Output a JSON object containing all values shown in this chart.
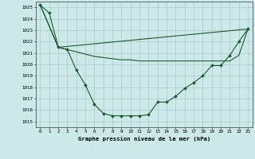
{
  "bg_color": "#cce8e8",
  "grid_color": "#aacccc",
  "line_color": "#1a5c2a",
  "marker_color": "#1a5c2a",
  "xlabel": "Graphe pression niveau de la mer (hPa)",
  "xlim": [
    -0.5,
    23.5
  ],
  "ylim": [
    1014.5,
    1025.5
  ],
  "yticks": [
    1015,
    1016,
    1017,
    1018,
    1019,
    1020,
    1021,
    1022,
    1023,
    1024,
    1025
  ],
  "xticks": [
    0,
    1,
    2,
    3,
    4,
    5,
    6,
    7,
    8,
    9,
    10,
    11,
    12,
    13,
    14,
    15,
    16,
    17,
    18,
    19,
    20,
    21,
    22,
    23
  ],
  "series1_x": [
    0,
    1,
    2,
    3,
    4,
    5,
    6,
    7,
    8,
    9,
    10,
    11,
    12,
    13,
    14,
    15,
    16,
    17,
    18,
    19,
    20,
    21,
    22,
    23
  ],
  "series1_y": [
    1025.2,
    1024.5,
    1021.5,
    1021.3,
    1019.5,
    1018.2,
    1016.5,
    1015.7,
    1015.5,
    1015.5,
    1015.5,
    1015.5,
    1015.6,
    1016.7,
    1016.7,
    1017.2,
    1017.9,
    1018.4,
    1019.0,
    1019.9,
    1019.9,
    1020.8,
    1022.0,
    1023.1
  ],
  "series2_x": [
    0,
    2,
    23
  ],
  "series2_y": [
    1025.2,
    1021.5,
    1023.1
  ],
  "series3_x": [
    0,
    2,
    3,
    4,
    5,
    6,
    7,
    8,
    9,
    10,
    11,
    12,
    13,
    14,
    15,
    16,
    17,
    18,
    19,
    20,
    21,
    22,
    23
  ],
  "series3_y": [
    1025.2,
    1021.5,
    1021.3,
    1021.1,
    1020.9,
    1020.7,
    1020.6,
    1020.5,
    1020.4,
    1020.4,
    1020.3,
    1020.3,
    1020.3,
    1020.3,
    1020.3,
    1020.3,
    1020.3,
    1020.3,
    1020.3,
    1020.3,
    1020.3,
    1020.8,
    1023.1
  ]
}
